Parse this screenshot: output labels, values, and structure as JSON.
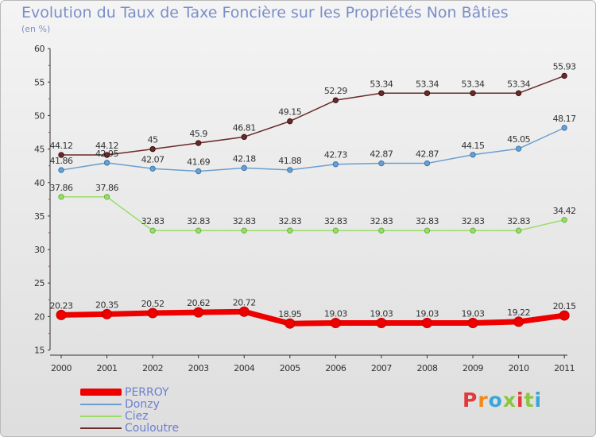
{
  "header": {
    "title": "Evolution du Taux de Taxe Foncière sur les Propriétés Non Bâties",
    "subtitle": "(en %)"
  },
  "logo": {
    "text": "Proxiti",
    "colors": [
      "#e23a3a",
      "#f08a1c",
      "#3aa6d8",
      "#8cc63f",
      "#e23a3a",
      "#8cc63f",
      "#3aa6d8"
    ]
  },
  "chart_data": {
    "type": "line",
    "title": "Evolution du Taux de Taxe Foncière sur les Propriétés Non Bâties",
    "ylabel": "(en %)",
    "xlabel": "",
    "categories": [
      "2000",
      "2001",
      "2002",
      "2003",
      "2004",
      "2005",
      "2006",
      "2007",
      "2008",
      "2009",
      "2010",
      "2011"
    ],
    "ylim": [
      15,
      60
    ],
    "yticks": [
      "15",
      "20",
      "25",
      "30",
      "35",
      "40",
      "45",
      "50",
      "55",
      "60"
    ],
    "grid": false,
    "legend_position": "bottom-left",
    "series": [
      {
        "name": "PERROY",
        "color": "#ee0000",
        "values": [
          20.23,
          20.35,
          20.52,
          20.62,
          20.72,
          18.95,
          19.03,
          19.03,
          19.03,
          19.03,
          19.22,
          20.15
        ],
        "labels": [
          "20.23",
          "20.35",
          "20.52",
          "20.62",
          "20.72",
          "18.95",
          "19.03",
          "19.03",
          "19.03",
          "19.03",
          "19.22",
          "20.15"
        ]
      },
      {
        "name": "Donzy",
        "color": "#6a9fcf",
        "values": [
          41.86,
          42.95,
          42.07,
          41.69,
          42.18,
          41.88,
          42.73,
          42.87,
          42.87,
          44.15,
          45.05,
          48.17
        ],
        "labels": [
          "41.86",
          "42.95",
          "42.07",
          "41.69",
          "42.18",
          "41.88",
          "42.73",
          "42.87",
          "42.87",
          "44.15",
          "45.05",
          "48.17"
        ]
      },
      {
        "name": "Ciez",
        "color": "#99dd66",
        "values": [
          37.86,
          37.86,
          32.83,
          32.83,
          32.83,
          32.83,
          32.83,
          32.83,
          32.83,
          32.83,
          32.83,
          34.42
        ],
        "labels": [
          "37.86",
          "37.86",
          "32.83",
          "32.83",
          "32.83",
          "32.83",
          "32.83",
          "32.83",
          "32.83",
          "32.83",
          "32.83",
          "34.42"
        ]
      },
      {
        "name": "Couloutre",
        "color": "#6b2a2a",
        "values": [
          44.12,
          44.12,
          45,
          45.9,
          46.81,
          49.15,
          52.29,
          53.34,
          53.34,
          53.34,
          53.34,
          55.93
        ],
        "labels": [
          "44.12",
          "44.12",
          "45",
          "45.9",
          "46.81",
          "49.15",
          "52.29",
          "53.34",
          "53.34",
          "53.34",
          "53.34",
          "55.93"
        ]
      }
    ]
  }
}
